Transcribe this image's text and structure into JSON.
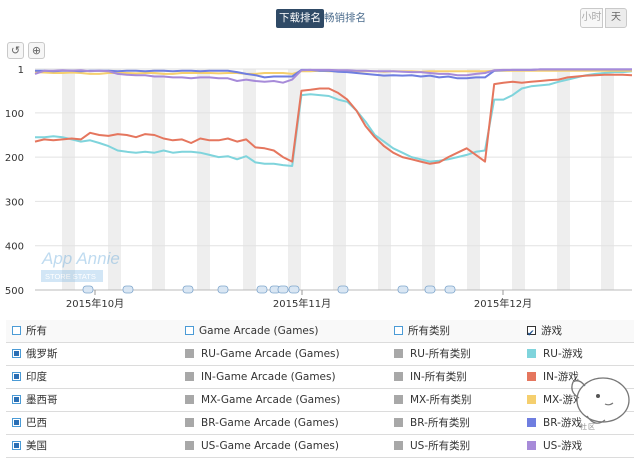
{
  "header": {
    "tab_downloads": "下载排名",
    "tab_grossing": "畅销排名",
    "granularity_hour": "小时",
    "granularity_day": "天"
  },
  "toolbar": {
    "reset_icon": "reset-icon",
    "zoom_icon": "zoom-icon"
  },
  "watermark": {
    "brand": "App Annie",
    "sub": "STORE STATS"
  },
  "chart_data": {
    "type": "line",
    "y_axis": {
      "reversed": true,
      "range": [
        1,
        500
      ],
      "ticks": [
        "1",
        "100",
        "200",
        "300",
        "400",
        "500"
      ]
    },
    "x_axis": {
      "ticks": [
        "2015年10月",
        "2015年11月",
        "2015年12月"
      ]
    },
    "grid": true,
    "series": [
      {
        "name": "RU-游戏",
        "color": "#7fd4dc",
        "values": [
          155,
          155,
          153,
          155,
          160,
          165,
          162,
          168,
          175,
          185,
          188,
          190,
          188,
          190,
          185,
          190,
          188,
          188,
          190,
          195,
          200,
          198,
          205,
          198,
          212,
          215,
          215,
          218,
          220,
          60,
          58,
          60,
          62,
          70,
          75,
          95,
          120,
          150,
          165,
          180,
          190,
          200,
          205,
          210,
          208,
          205,
          200,
          195,
          188,
          185,
          70,
          70,
          60,
          45,
          40,
          38,
          36,
          30,
          25,
          20,
          15,
          12,
          10,
          8,
          8,
          6
        ]
      },
      {
        "name": "IN-游戏",
        "color": "#e5765e",
        "values": [
          165,
          160,
          162,
          160,
          158,
          160,
          145,
          150,
          152,
          148,
          150,
          155,
          148,
          150,
          158,
          162,
          160,
          168,
          158,
          162,
          162,
          158,
          165,
          160,
          178,
          180,
          185,
          200,
          210,
          50,
          48,
          45,
          45,
          55,
          70,
          95,
          130,
          155,
          175,
          190,
          200,
          205,
          210,
          215,
          212,
          200,
          190,
          180,
          195,
          210,
          35,
          32,
          30,
          32,
          30,
          28,
          26,
          25,
          20,
          18,
          16,
          15,
          14,
          14,
          14,
          15
        ]
      },
      {
        "name": "MX-游戏",
        "color": "#f5cf6e",
        "values": [
          8,
          9,
          10,
          10,
          9,
          10,
          12,
          12,
          10,
          10,
          10,
          11,
          10,
          10,
          12,
          12,
          10,
          10,
          10,
          10,
          11,
          10,
          10,
          12,
          12,
          10,
          10,
          10,
          12,
          6,
          6,
          5,
          6,
          6,
          5,
          6,
          6,
          6,
          7,
          6,
          6,
          6,
          7,
          6,
          6,
          6,
          6,
          6,
          6,
          6,
          5,
          5,
          5,
          5,
          5,
          5,
          5,
          5,
          5,
          5,
          5,
          5,
          5,
          5,
          5,
          5
        ]
      },
      {
        "name": "BR-游戏",
        "color": "#6f7ee0",
        "values": [
          5,
          5,
          6,
          5,
          5,
          6,
          5,
          5,
          5,
          6,
          5,
          5,
          6,
          5,
          5,
          6,
          5,
          5,
          6,
          5,
          5,
          5,
          8,
          12,
          15,
          20,
          18,
          18,
          18,
          3,
          3,
          5,
          5,
          7,
          8,
          10,
          12,
          14,
          16,
          15,
          16,
          15,
          18,
          16,
          20,
          18,
          22,
          22,
          20,
          20,
          5,
          4,
          3,
          3,
          3,
          2,
          2,
          2,
          2,
          2,
          2,
          2,
          2,
          2,
          2,
          2
        ]
      },
      {
        "name": "US-游戏",
        "color": "#a78bd9",
        "values": [
          12,
          5,
          5,
          4,
          5,
          4,
          6,
          5,
          6,
          12,
          14,
          15,
          15,
          18,
          18,
          20,
          20,
          22,
          20,
          20,
          22,
          22,
          28,
          25,
          28,
          30,
          28,
          32,
          25,
          4,
          3,
          3,
          3,
          4,
          4,
          5,
          5,
          6,
          6,
          6,
          7,
          8,
          8,
          10,
          12,
          12,
          15,
          15,
          12,
          10,
          4,
          3,
          3,
          3,
          3,
          2,
          2,
          2,
          2,
          2,
          2,
          2,
          2,
          2,
          2,
          2
        ]
      }
    ]
  },
  "legend": {
    "header": [
      "所有",
      "Game Arcade (Games)",
      "所有类别",
      "游戏"
    ],
    "rows": [
      {
        "country": "俄罗斯",
        "arcade": "RU-Game Arcade (Games)",
        "all": "RU-所有类别",
        "games": "RU-游戏",
        "color": "#7fd4dc"
      },
      {
        "country": "印度",
        "arcade": "IN-Game Arcade (Games)",
        "all": "IN-所有类别",
        "games": "IN-游戏",
        "color": "#e5765e"
      },
      {
        "country": "墨西哥",
        "arcade": "MX-Game Arcade (Games)",
        "all": "MX-所有类别",
        "games": "MX-游戏",
        "color": "#f5cf6e"
      },
      {
        "country": "巴西",
        "arcade": "BR-Game Arcade (Games)",
        "all": "BR-所有类别",
        "games": "BR-游戏",
        "color": "#6f7ee0"
      },
      {
        "country": "美国",
        "arcade": "US-Game Arcade (Games)",
        "all": "US-所有类别",
        "games": "US-游戏",
        "color": "#a78bd9"
      }
    ]
  },
  "mascot": {
    "label": "社区"
  }
}
